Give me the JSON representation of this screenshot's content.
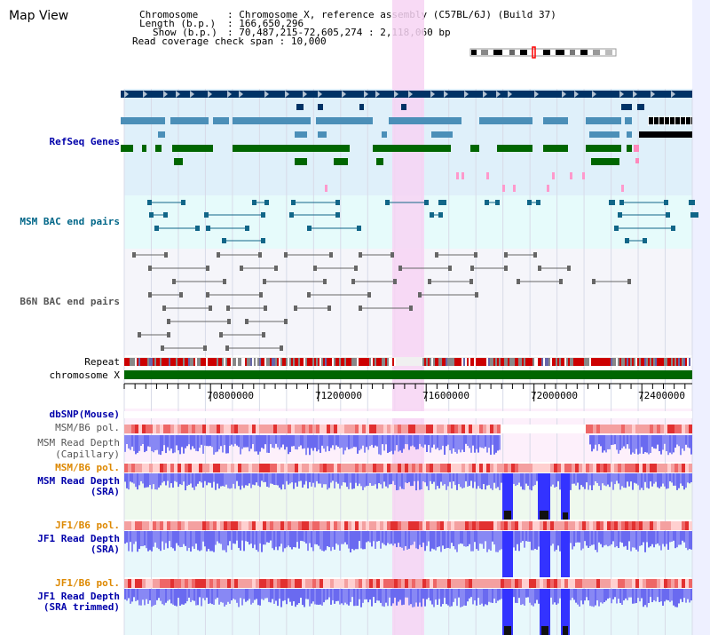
{
  "app": {
    "title": "Map View"
  },
  "header": {
    "rows": [
      {
        "key": "Chromosome",
        "value": "Chromosome X, reference assembly (C57BL/6J) (Build 37)"
      },
      {
        "key": "Length (b.p.)",
        "value": "166,650,296"
      },
      {
        "key": "Show (b.p.)",
        "value": "70,487,215-72,605,274 : 2,118,060 bp"
      }
    ],
    "coverage_key": "Read coverage check span",
    "coverage_value": "10,000"
  },
  "tracks": {
    "refseq": "RefSeq Genes",
    "msm_bac": "MSM BAC end pairs",
    "b6n_bac": "B6N BAC end pairs",
    "repeat": "Repeat",
    "chromosome": "chromosome X",
    "dbsnp": "dbSNP(Mouse)",
    "msm_b6_pol_1": "MSM/B6 pol.",
    "msm_depth_cap_1": "MSM Read Depth",
    "msm_depth_cap_2": "(Capillary)",
    "msm_b6_pol_2": "MSM/B6 pol.",
    "msm_depth_sra_1": "MSM Read Depth",
    "msm_depth_sra_2": "(SRA)",
    "jf1_b6_pol_1": "JF1/B6 pol.",
    "jf1_depth_sra_1": "JF1 Read Depth",
    "jf1_depth_sra_2": "(SRA)",
    "jf1_b6_pol_2": "JF1/B6 pol.",
    "jf1_depth_trim_1": "JF1 Read Depth",
    "jf1_depth_trim_2": "(SRA trimmed)"
  },
  "axis": {
    "ticks": [
      "70800000",
      "71200000",
      "71600000",
      "72000000",
      "72400000"
    ]
  },
  "colors": {
    "refseq_dark": "#003366",
    "refseq_mid": "#4b8fb8",
    "refseq_green": "#006600",
    "highlight": "#f7d3f3",
    "repeat_red": "#cc0000",
    "chrom_green": "#006600",
    "depth_blue": "#3333ff",
    "label_blue": "#0000aa",
    "label_orange": "#dd8800"
  }
}
